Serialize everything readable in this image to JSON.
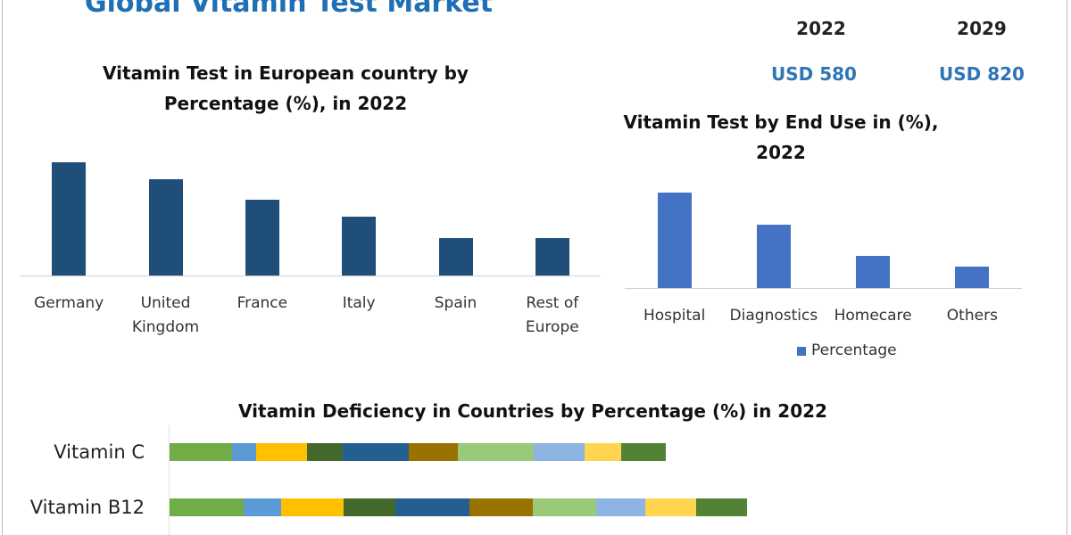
{
  "header": {
    "title": "Global Vitamin Test Market"
  },
  "stats": {
    "years": [
      "2022",
      "2029"
    ],
    "values": [
      "USD 580",
      "USD 820"
    ]
  },
  "chart_data": [
    {
      "type": "bar",
      "title": "Vitamin Test in European country by Percentage (%), in 2022",
      "categories": [
        "Germany",
        "United Kingdom",
        "France",
        "Italy",
        "Spain",
        "Rest of Europe"
      ],
      "values": [
        27,
        23,
        18,
        14,
        9,
        9
      ],
      "color": "#1f4e79"
    },
    {
      "type": "bar",
      "title": "Vitamin Test by End Use in (%), 2022",
      "categories": [
        "Hospital",
        "Diagnostics",
        "Homecare",
        "Others"
      ],
      "series": [
        {
          "name": "Percentage",
          "color": "#4472c4",
          "values": [
            45,
            30,
            15,
            10
          ]
        }
      ],
      "legend": "bottom"
    },
    {
      "type": "bar",
      "orientation": "horizontal",
      "stacked": true,
      "title": "Vitamin Deficiency in Countries by Percentage (%) in 2022",
      "categories": [
        "Vitamin C",
        "Vitamin B12"
      ],
      "series": [
        {
          "color": "#70ad47",
          "values": [
            11.7,
            13.8
          ]
        },
        {
          "color": "#5b9bd5",
          "values": [
            4.5,
            7
          ]
        },
        {
          "color": "#ffc000",
          "values": [
            9.5,
            11.7
          ]
        },
        {
          "color": "#43682b",
          "values": [
            6.7,
            9.7
          ]
        },
        {
          "color": "#255e91",
          "values": [
            12.2,
            13.8
          ]
        },
        {
          "color": "#997300",
          "values": [
            9.2,
            11.8
          ]
        },
        {
          "color": "#9bc97a",
          "values": [
            14.2,
            11.8
          ]
        },
        {
          "color": "#8db4e2",
          "values": [
            9.5,
            9.2
          ]
        },
        {
          "color": "#ffd54f",
          "values": [
            6.8,
            9.5
          ]
        },
        {
          "color": "#548235",
          "values": [
            8.3,
            9.5
          ]
        }
      ]
    }
  ]
}
